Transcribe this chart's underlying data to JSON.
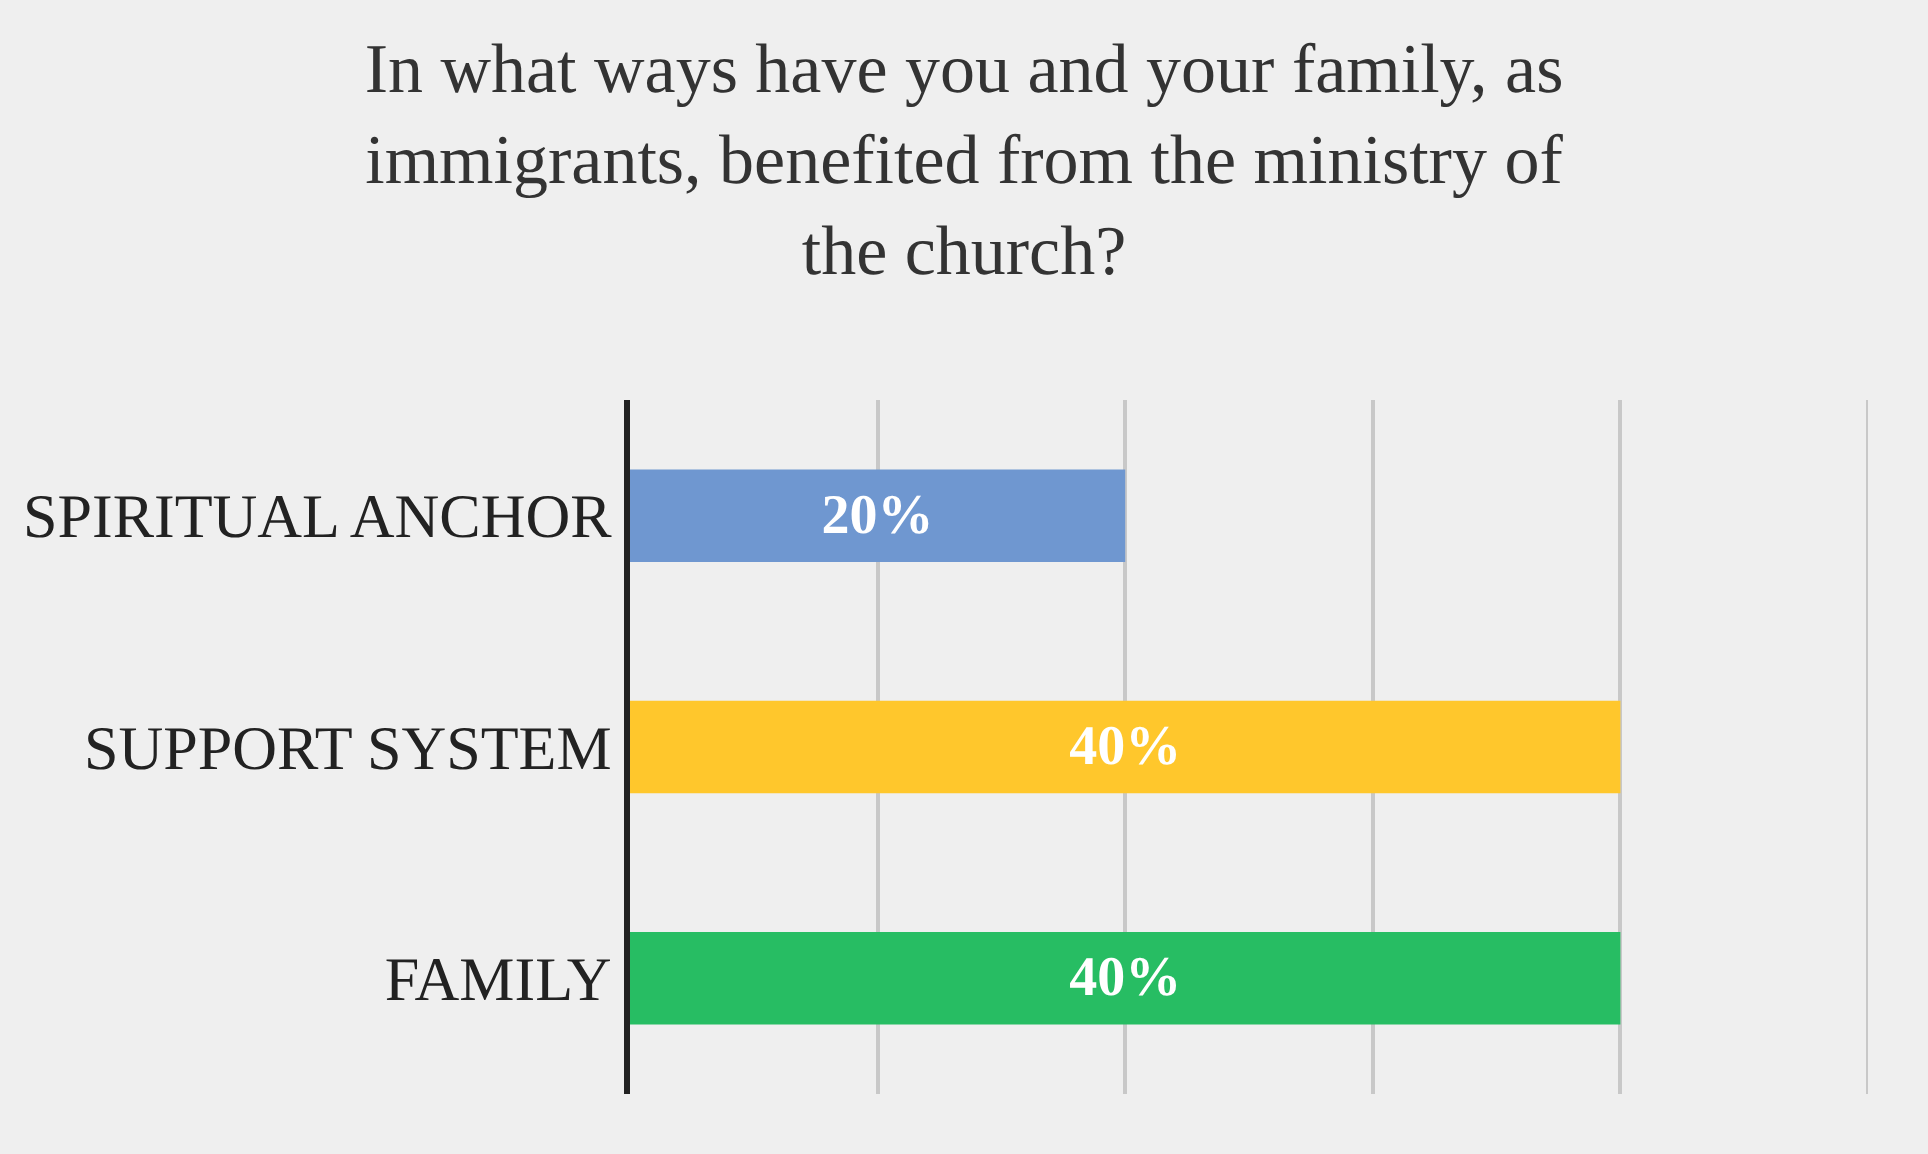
{
  "chart_data": {
    "type": "bar",
    "orientation": "horizontal",
    "title": "In what ways have you and your family, as immigrants, benefited from the ministry of the church?",
    "categories": [
      "SPIRITUAL ANCHOR",
      "SUPPORT SYSTEM",
      "FAMILY"
    ],
    "values": [
      20,
      40,
      40
    ],
    "colors": [
      "#6f97d0",
      "#ffc72c",
      "#27bd63"
    ],
    "value_labels": [
      "20%",
      "40%",
      "40%"
    ],
    "xlim": [
      0,
      50
    ],
    "xticks": [
      {
        "value": 0,
        "label": null
      },
      {
        "value": 10,
        "label": null
      },
      {
        "value": 20,
        "label": null
      },
      {
        "value": 30,
        "label": null
      },
      {
        "value": 40,
        "label": null
      }
    ],
    "grid": "x",
    "tick_labels": "y",
    "legend": false
  }
}
